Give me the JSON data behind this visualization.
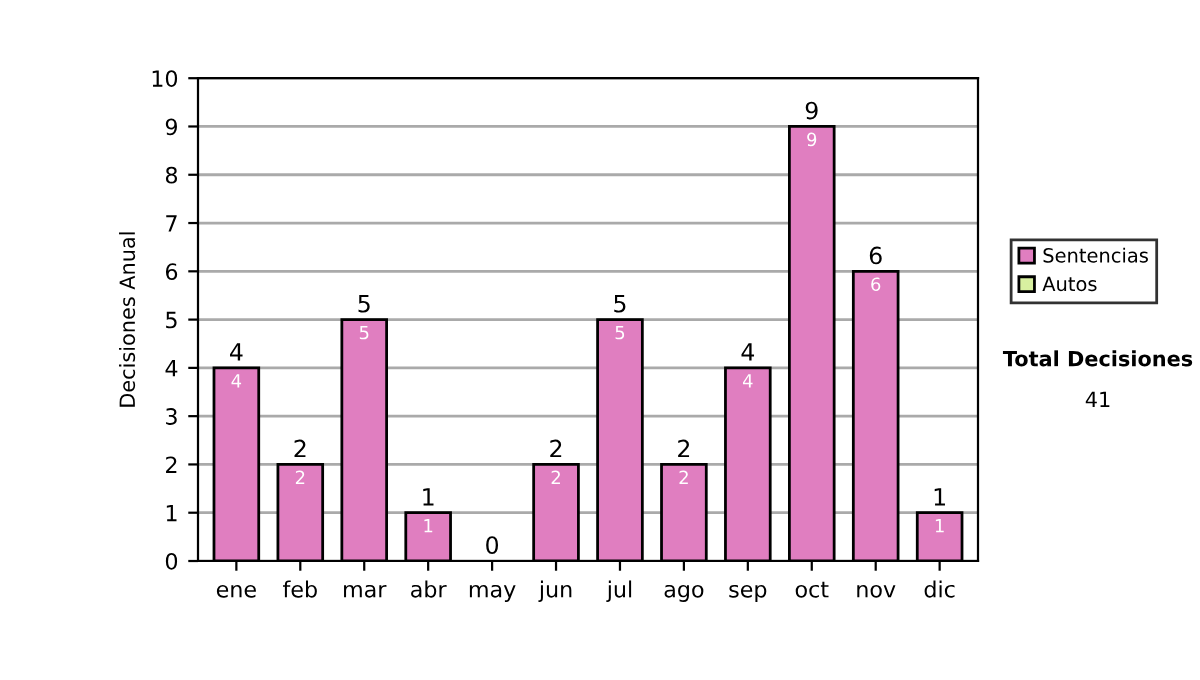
{
  "chart_data": {
    "type": "bar",
    "ylabel": "Decisiones Anual",
    "categories": [
      "ene",
      "feb",
      "mar",
      "abr",
      "may",
      "jun",
      "jul",
      "ago",
      "sep",
      "oct",
      "nov",
      "dic"
    ],
    "series": [
      {
        "name": "Sentencias",
        "color": "#e07ec0",
        "values": [
          4,
          2,
          5,
          1,
          0,
          2,
          5,
          2,
          4,
          9,
          6,
          1
        ],
        "value_labels": [
          "4",
          "2",
          "5",
          "1",
          null,
          "2",
          "5",
          "2",
          "4",
          "9",
          "6",
          "1"
        ]
      },
      {
        "name": "Autos",
        "color": "#d8f0a0",
        "values": [
          0,
          0,
          0,
          0,
          0,
          0,
          0,
          0,
          0,
          0,
          0,
          0
        ]
      }
    ],
    "stacked": true,
    "totals": [
      "4",
      "2",
      "5",
      "1",
      "0",
      "2",
      "5",
      "2",
      "4",
      "9",
      "6",
      "1"
    ],
    "ylim": [
      0,
      10
    ],
    "yticks": [
      0,
      1,
      2,
      3,
      4,
      5,
      6,
      7,
      8,
      9,
      10
    ],
    "grid": "y",
    "legend": "right",
    "annotations": [
      "Total Decisiones",
      "41"
    ]
  }
}
